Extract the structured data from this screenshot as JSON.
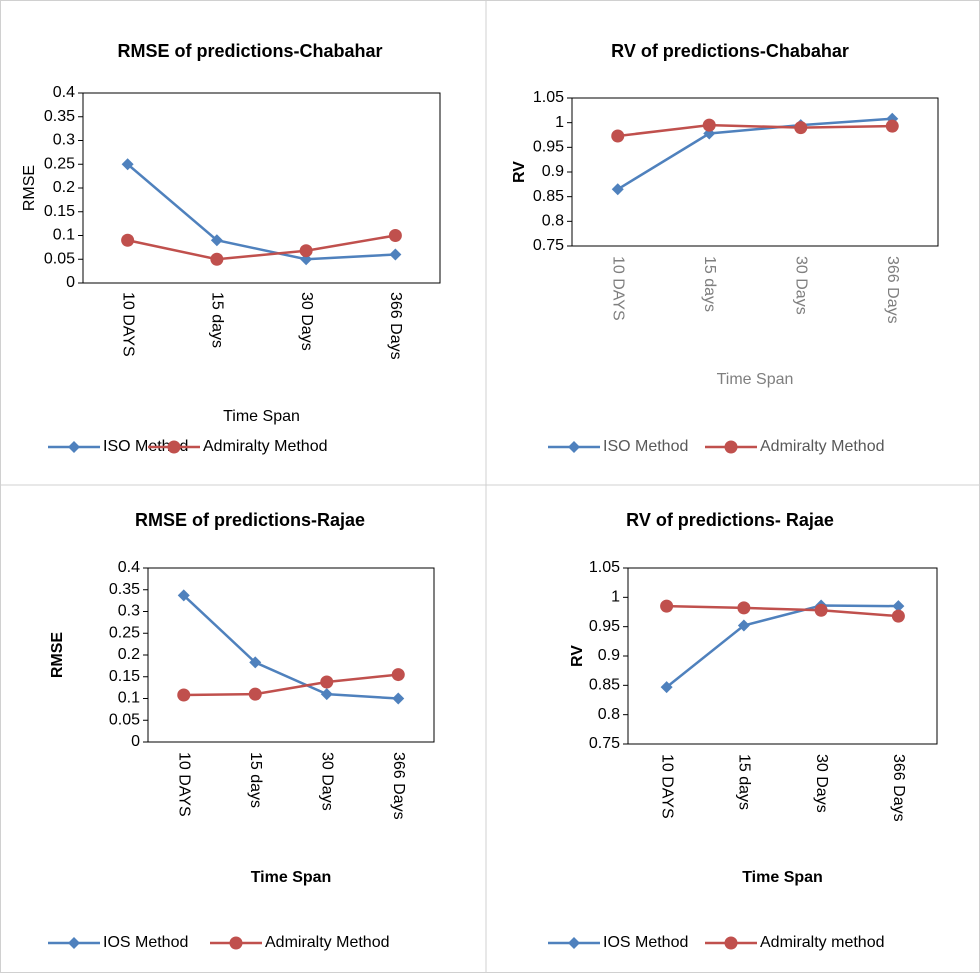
{
  "chart_data": [
    {
      "type": "line",
      "title": "RMSE of predictions-Chabahar",
      "x_label": "Time Span",
      "y_label": "RMSE",
      "categories": [
        "10 DAYS",
        "15 days",
        "30 Days",
        "366 Days"
      ],
      "series": [
        {
          "name": "ISO Method",
          "color": "#4f81bd",
          "values": [
            0.25,
            0.09,
            0.05,
            0.06
          ]
        },
        {
          "name": "Admiralty Method",
          "color": "#c0504d",
          "values": [
            0.09,
            0.05,
            0.068,
            0.1
          ]
        }
      ],
      "ylim": [
        0,
        0.4
      ],
      "yticks": [
        0,
        0.05,
        0.1,
        0.15,
        0.2,
        0.25,
        0.3,
        0.35,
        0.4
      ]
    },
    {
      "type": "line",
      "title": "RV of predictions-Chabahar",
      "x_label": "Time Span",
      "y_label": "RV",
      "categories": [
        "10 DAYS",
        "15 days",
        "30 Days",
        "366 Days"
      ],
      "series": [
        {
          "name": "ISO Method",
          "color": "#4f81bd",
          "values": [
            0.865,
            0.978,
            0.995,
            1.008
          ]
        },
        {
          "name": "Admiralty Method",
          "color": "#c0504d",
          "values": [
            0.973,
            0.995,
            0.99,
            0.993
          ]
        }
      ],
      "ylim": [
        0.75,
        1.05
      ],
      "yticks": [
        0.75,
        0.8,
        0.85,
        0.9,
        0.95,
        1,
        1.05
      ]
    },
    {
      "type": "line",
      "title": "RMSE of predictions-Rajae",
      "x_label": "Time Span",
      "y_label": "RMSE",
      "categories": [
        "10 DAYS",
        "15 days",
        "30 Days",
        "366 Days"
      ],
      "series": [
        {
          "name": "IOS Method",
          "color": "#4f81bd",
          "values": [
            0.337,
            0.183,
            0.11,
            0.1
          ]
        },
        {
          "name": "Admiralty Method",
          "color": "#c0504d",
          "values": [
            0.108,
            0.11,
            0.138,
            0.155
          ]
        }
      ],
      "ylim": [
        0,
        0.4
      ],
      "yticks": [
        0,
        0.05,
        0.1,
        0.15,
        0.2,
        0.25,
        0.3,
        0.35,
        0.4
      ]
    },
    {
      "type": "line",
      "title": "RV of predictions- Rajae",
      "x_label": "Time Span",
      "y_label": "RV",
      "categories": [
        "10 DAYS",
        "15 days",
        "30 Days",
        "366 Days"
      ],
      "series": [
        {
          "name": "IOS Method",
          "color": "#4f81bd",
          "values": [
            0.847,
            0.952,
            0.986,
            0.985
          ]
        },
        {
          "name": "Admiralty method",
          "color": "#c0504d",
          "values": [
            0.985,
            0.982,
            0.978,
            0.968
          ]
        }
      ],
      "ylim": [
        0.75,
        1.05
      ],
      "yticks": [
        0.75,
        0.8,
        0.85,
        0.9,
        0.95,
        1,
        1.05
      ]
    }
  ]
}
